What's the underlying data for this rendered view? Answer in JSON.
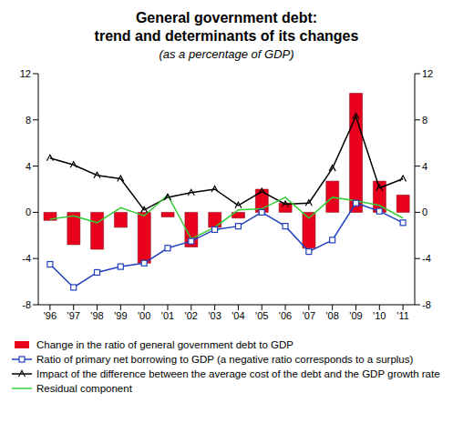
{
  "chart_data": {
    "type": "bar",
    "title": "General government debt:\ntrend and determinants of its changes",
    "subtitle": "(as a percentage of GDP)",
    "categories": [
      "'96",
      "'97",
      "'98",
      "'99",
      "'00",
      "'01",
      "'02",
      "'03",
      "'04",
      "'05",
      "'06",
      "'07",
      "'08",
      "'09",
      "'10",
      "'11"
    ],
    "series": [
      {
        "name": "Change in the ratio of general government debt to GDP",
        "type": "bar",
        "color": "#e8001c",
        "values": [
          -0.7,
          -2.8,
          -3.2,
          -1.3,
          -4.4,
          -0.4,
          -3.0,
          -1.3,
          -0.5,
          2.0,
          0.8,
          -3.1,
          2.7,
          10.3,
          2.7,
          1.5
        ]
      },
      {
        "name": "Ratio of primary net borrowing to GDP (a negative ratio corresponds to a surplus)",
        "type": "line",
        "color": "#2040c0",
        "marker": "square",
        "values": [
          -4.5,
          -6.5,
          -5.2,
          -4.7,
          -4.4,
          -3.1,
          -2.5,
          -1.5,
          -1.2,
          0.0,
          -1.2,
          -3.4,
          -2.4,
          0.8,
          0.1,
          -0.9
        ]
      },
      {
        "name": "Impact of the difference between the average cost of the debt and the GDP growth rate",
        "type": "line",
        "color": "#000000",
        "marker": "triangle",
        "values": [
          4.7,
          4.1,
          3.2,
          2.9,
          0.2,
          1.3,
          1.7,
          2.0,
          0.6,
          1.8,
          0.7,
          0.8,
          3.8,
          8.3,
          2.1,
          2.9
        ]
      },
      {
        "name": "Residual component",
        "type": "line",
        "color": "#33cc33",
        "marker": "none",
        "values": [
          -0.6,
          -0.3,
          -0.9,
          0.4,
          -0.3,
          1.5,
          -2.3,
          -1.3,
          0.2,
          0.3,
          1.3,
          -0.5,
          1.3,
          1.0,
          0.6,
          -0.5
        ]
      }
    ],
    "ylim": [
      -8,
      12
    ],
    "yticks": [
      -8,
      -4,
      0,
      4,
      8,
      12
    ],
    "y2lim": [
      -8,
      12
    ],
    "y2ticks": [
      -8,
      -4,
      0,
      4,
      8,
      12
    ],
    "grid": false
  }
}
